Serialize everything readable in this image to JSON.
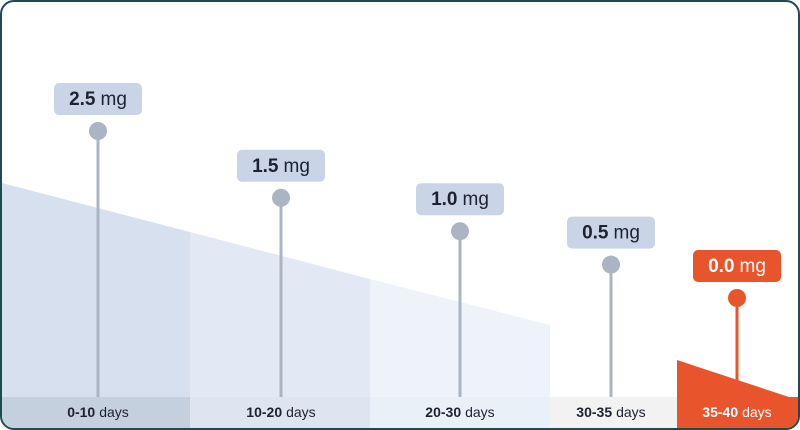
{
  "chart_data": {
    "type": "lollipop",
    "categories": [
      "0-10",
      "10-20",
      "20-30",
      "30-35",
      "35-40"
    ],
    "x_unit": "days",
    "values": [
      2.5,
      1.5,
      1,
      0.5,
      0
    ],
    "value_labels": [
      "2.5",
      "1.5",
      "1.0",
      "0.5",
      "0.0"
    ],
    "unit": "mg",
    "colors": [
      "#aab4c3",
      "#aab4c3",
      "#aab4c3",
      "#aab4c3",
      "#e8552c"
    ]
  }
}
